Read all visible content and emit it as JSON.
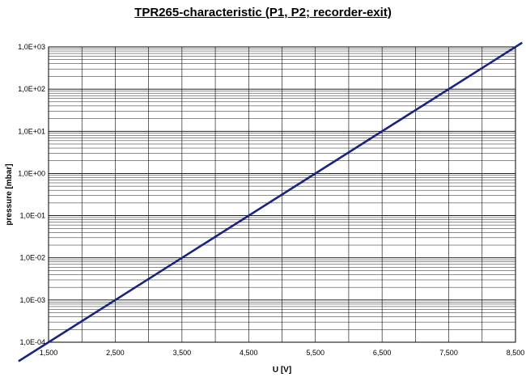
{
  "chart_data": {
    "type": "line",
    "title": "TPR265-characteristic (P1, P2; recorder-exit)",
    "xlabel": "U [V]",
    "ylabel": "pressure [mbar]",
    "xlim": [
      1.5,
      8.5
    ],
    "ylim": [
      0.0001,
      1000
    ],
    "yscale": "log",
    "grid": true,
    "x_ticks": [
      1.5,
      2.5,
      3.5,
      4.5,
      5.5,
      6.5,
      7.5,
      8.5
    ],
    "x_tick_labels": [
      "1,500",
      "2,500",
      "3,500",
      "4,500",
      "5,500",
      "6,500",
      "7,500",
      "8,500"
    ],
    "y_tick_labels": [
      "1,0E-04",
      "1,0E-03",
      "1,0E-02",
      "1,0E-01",
      "1,0E+00",
      "1,0E+01",
      "1,0E+02",
      "1,0E+03"
    ],
    "series": [
      {
        "x": [
          1.5,
          8.5
        ],
        "y": [
          0.0001,
          1000
        ]
      }
    ],
    "colors": {
      "line": "#1a237e",
      "grid": "#000000"
    }
  }
}
